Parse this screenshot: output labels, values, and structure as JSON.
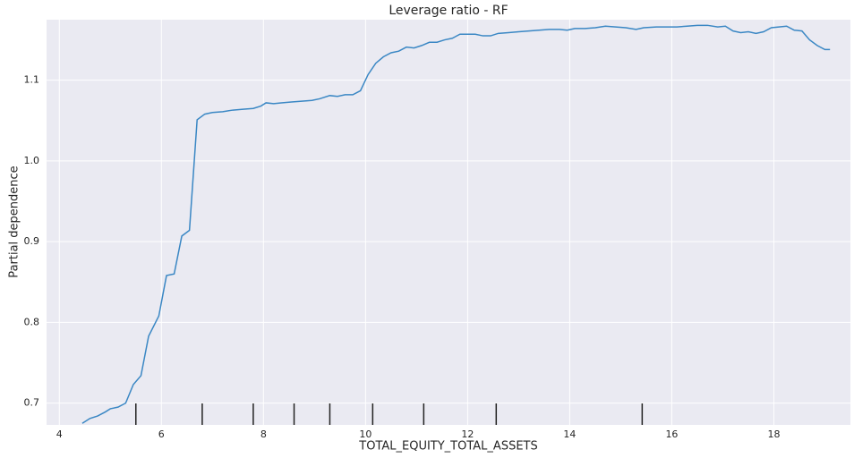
{
  "chart_data": {
    "type": "line",
    "title": "Leverage ratio - RF",
    "xlabel": "TOTAL_EQUITY_TOTAL_ASSETS",
    "ylabel": "Partial dependence",
    "color": "#3a87c4",
    "grid": true,
    "x": [
      4.45,
      4.6,
      4.75,
      4.9,
      5.0,
      5.15,
      5.3,
      5.45,
      5.6,
      5.75,
      5.95,
      6.1,
      6.25,
      6.4,
      6.55,
      6.7,
      6.85,
      7.0,
      7.2,
      7.4,
      7.6,
      7.8,
      7.95,
      8.05,
      8.2,
      8.35,
      8.55,
      8.75,
      8.95,
      9.1,
      9.3,
      9.45,
      9.6,
      9.75,
      9.9,
      10.05,
      10.2,
      10.35,
      10.5,
      10.65,
      10.8,
      10.95,
      11.1,
      11.25,
      11.4,
      11.55,
      11.7,
      11.85,
      12.0,
      12.15,
      12.3,
      12.45,
      12.6,
      12.8,
      13.0,
      13.2,
      13.4,
      13.6,
      13.8,
      13.95,
      14.1,
      14.3,
      14.5,
      14.7,
      14.9,
      15.1,
      15.3,
      15.45,
      15.7,
      15.9,
      16.1,
      16.3,
      16.5,
      16.7,
      16.9,
      17.05,
      17.2,
      17.35,
      17.5,
      17.65,
      17.8,
      17.95,
      18.1,
      18.25,
      18.4,
      18.55,
      18.7,
      18.85,
      19.0,
      19.1
    ],
    "values": [
      0.675,
      0.681,
      0.684,
      0.689,
      0.693,
      0.695,
      0.7,
      0.723,
      0.734,
      0.783,
      0.808,
      0.858,
      0.86,
      0.907,
      0.914,
      1.051,
      1.058,
      1.06,
      1.061,
      1.063,
      1.064,
      1.065,
      1.068,
      1.072,
      1.071,
      1.072,
      1.073,
      1.074,
      1.075,
      1.077,
      1.081,
      1.08,
      1.082,
      1.082,
      1.087,
      1.107,
      1.121,
      1.129,
      1.134,
      1.136,
      1.141,
      1.14,
      1.143,
      1.147,
      1.147,
      1.15,
      1.152,
      1.157,
      1.157,
      1.157,
      1.155,
      1.155,
      1.158,
      1.159,
      1.16,
      1.161,
      1.162,
      1.163,
      1.163,
      1.162,
      1.164,
      1.164,
      1.165,
      1.167,
      1.166,
      1.165,
      1.163,
      1.165,
      1.166,
      1.166,
      1.166,
      1.167,
      1.168,
      1.168,
      1.166,
      1.167,
      1.161,
      1.159,
      1.16,
      1.158,
      1.16,
      1.165,
      1.166,
      1.167,
      1.162,
      1.161,
      1.15,
      1.143,
      1.138,
      1.138
    ],
    "deciles": [
      5.5,
      6.8,
      7.8,
      8.6,
      9.3,
      10.14,
      11.14,
      12.56,
      15.42
    ],
    "xlim": [
      3.75,
      19.5
    ],
    "ylim": [
      0.673,
      1.175
    ],
    "xticks": [
      4,
      6,
      8,
      10,
      12,
      14,
      16,
      18
    ],
    "yticks": [
      0.7,
      0.8,
      0.9,
      {
        "value": 1,
        "label": "1.0"
      },
      1.1
    ]
  }
}
